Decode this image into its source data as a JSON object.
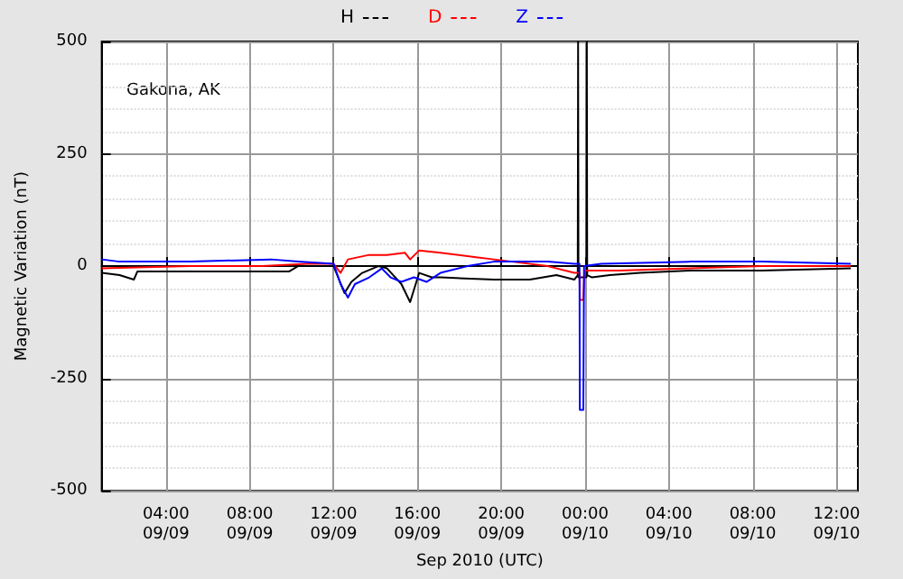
{
  "chart_data": {
    "type": "line",
    "xlabel": "Sep 2010 (UTC)",
    "ylabel": "Magnetic Variation (nT)",
    "annotations": [
      "Gakona, AK"
    ],
    "xlim": [
      "2010-09-09T00:56",
      "2010-09-10T13:01"
    ],
    "xticks": [
      {
        "value": "2010-09-09T04:00",
        "label": "04:00\n09/09"
      },
      {
        "value": "2010-09-09T08:00",
        "label": "08:00\n09/09"
      },
      {
        "value": "2010-09-09T12:00",
        "label": "12:00\n09/09"
      },
      {
        "value": "2010-09-09T16:00",
        "label": "16:00\n09/09"
      },
      {
        "value": "2010-09-09T20:00",
        "label": "20:00\n09/09"
      },
      {
        "value": "2010-09-10T00:00",
        "label": "00:00\n09/10"
      },
      {
        "value": "2010-09-10T04:00",
        "label": "04:00\n09/10"
      },
      {
        "value": "2010-09-10T08:00",
        "label": "08:00\n09/10"
      },
      {
        "value": "2010-09-10T12:00",
        "label": "12:00\n09/10"
      }
    ],
    "ylim": [
      -500,
      500
    ],
    "yticks": [
      -500,
      -250,
      0,
      250,
      500
    ],
    "grid": true,
    "legend": "top",
    "marker": "none",
    "line_style": "solid",
    "series": [
      {
        "name": "H",
        "color": "#000000",
        "x": [
          "2010-09-09T00:56",
          "2010-09-09T01:47",
          "2010-09-09T02:28",
          "2010-09-09T02:38",
          "2010-09-09T05:11",
          "2010-09-09T09:52",
          "2010-09-09T10:18",
          "2010-09-09T12:00",
          "2010-09-09T12:31",
          "2010-09-09T12:51",
          "2010-09-09T13:22",
          "2010-09-09T14:08",
          "2010-09-09T14:33",
          "2010-09-09T15:14",
          "2010-09-09T15:39",
          "2010-09-09T16:05",
          "2010-09-09T16:41",
          "2010-09-09T17:06",
          "2010-09-09T19:39",
          "2010-09-09T21:22",
          "2010-09-09T22:38",
          "2010-09-09T23:29",
          "2010-09-09T23:39",
          "2010-09-09T23:40",
          "2010-09-09T23:41",
          "2010-09-10T00:04",
          "2010-09-10T00:05",
          "2010-09-10T00:06",
          "2010-09-10T00:20",
          "2010-09-10T01:11",
          "2010-09-10T02:38",
          "2010-09-10T05:01",
          "2010-09-10T08:26",
          "2010-09-10T12:41"
        ],
        "values": [
          -15,
          -20,
          -30,
          -12,
          -12,
          -12,
          0,
          0,
          -60,
          -35,
          -15,
          0,
          -5,
          -40,
          -80,
          -15,
          -25,
          -25,
          -30,
          -30,
          -20,
          -30,
          -20,
          500,
          -25,
          -25,
          500,
          -20,
          -25,
          -20,
          -15,
          -10,
          -10,
          -5
        ]
      },
      {
        "name": "D",
        "color": "#ff0000",
        "x": [
          "2010-09-09T00:56",
          "2010-09-09T05:11",
          "2010-09-09T08:36",
          "2010-09-09T10:43",
          "2010-09-09T12:00",
          "2010-09-09T12:20",
          "2010-09-09T12:41",
          "2010-09-09T13:42",
          "2010-09-09T14:33",
          "2010-09-09T15:24",
          "2010-09-09T15:39",
          "2010-09-09T16:05",
          "2010-09-09T17:06",
          "2010-09-09T18:48",
          "2010-09-09T19:39",
          "2010-09-09T20:31",
          "2010-09-09T22:13",
          "2010-09-09T23:29",
          "2010-09-09T23:44",
          "2010-09-09T23:45",
          "2010-09-09T23:55",
          "2010-09-09T23:58",
          "2010-09-10T00:05",
          "2010-09-10T01:37",
          "2010-09-10T05:01",
          "2010-09-10T08:26",
          "2010-09-10T12:41"
        ],
        "values": [
          -5,
          0,
          0,
          5,
          5,
          -15,
          15,
          25,
          25,
          30,
          15,
          35,
          30,
          20,
          15,
          10,
          0,
          -15,
          -15,
          -75,
          -75,
          -10,
          -10,
          -10,
          -5,
          0,
          0
        ]
      },
      {
        "name": "Z",
        "color": "#0000ff",
        "x": [
          "2010-09-09T00:56",
          "2010-09-09T01:47",
          "2010-09-09T05:11",
          "2010-09-09T09:01",
          "2010-09-09T10:18",
          "2010-09-09T12:00",
          "2010-09-09T12:20",
          "2010-09-09T12:41",
          "2010-09-09T13:01",
          "2010-09-09T13:42",
          "2010-09-09T14:18",
          "2010-09-09T14:43",
          "2010-09-09T15:14",
          "2010-09-09T15:50",
          "2010-09-09T16:26",
          "2010-09-09T17:06",
          "2010-09-09T18:23",
          "2010-09-09T19:39",
          "2010-09-09T22:13",
          "2010-09-09T23:29",
          "2010-09-09T23:44",
          "2010-09-09T23:45",
          "2010-09-09T23:55",
          "2010-09-09T23:57",
          "2010-09-10T00:46",
          "2010-09-10T05:01",
          "2010-09-10T08:26",
          "2010-09-10T12:41"
        ],
        "values": [
          15,
          10,
          10,
          15,
          10,
          5,
          -40,
          -70,
          -40,
          -25,
          -5,
          -25,
          -35,
          -25,
          -35,
          -15,
          0,
          10,
          10,
          5,
          5,
          -320,
          -320,
          0,
          5,
          10,
          10,
          5
        ]
      }
    ]
  }
}
